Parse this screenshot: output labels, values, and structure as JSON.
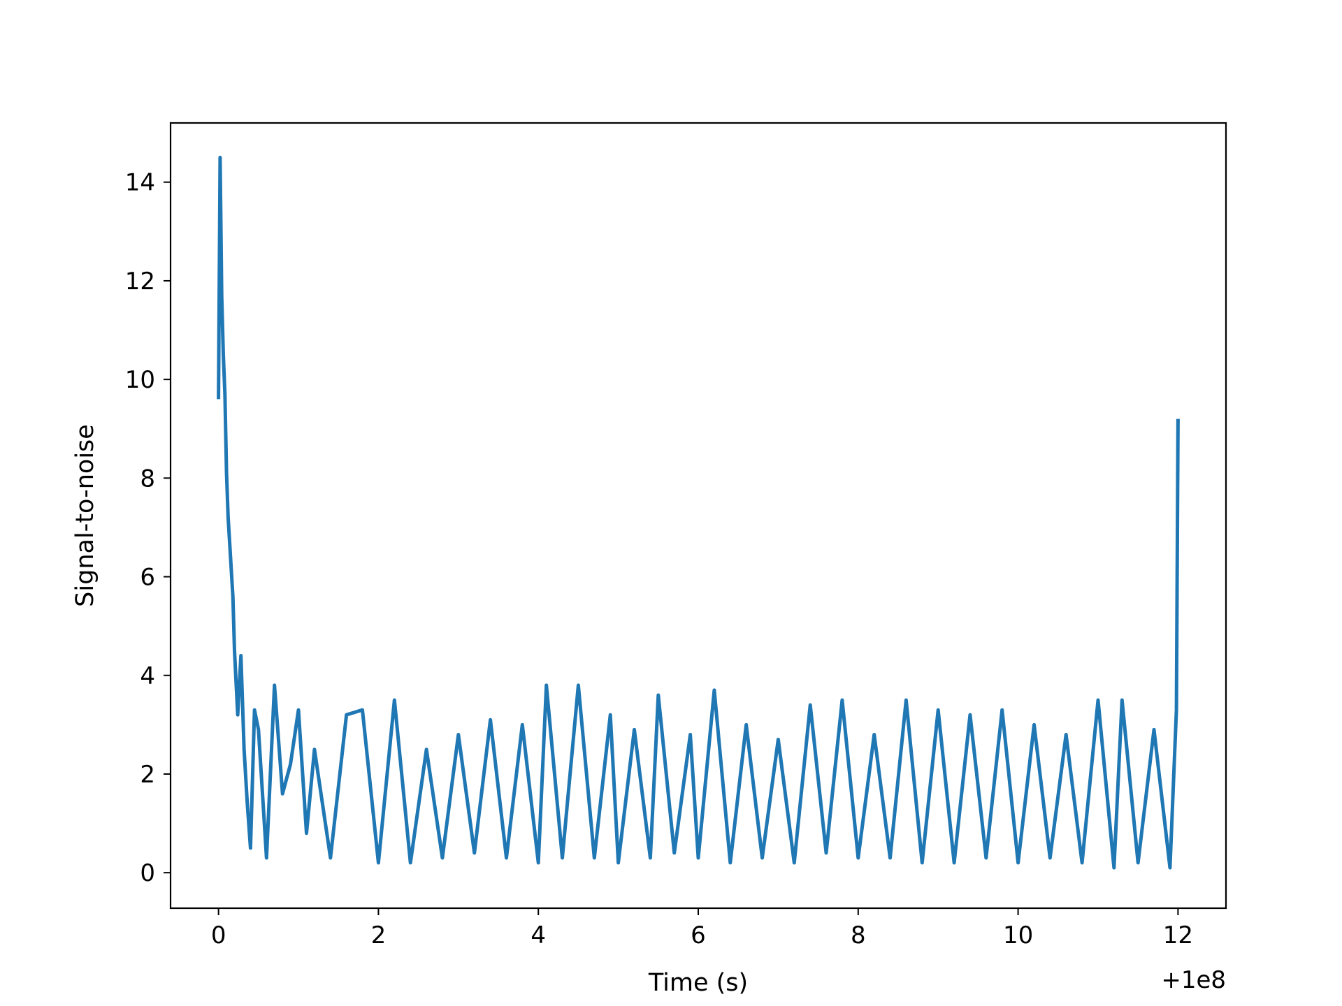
{
  "chart_data": {
    "type": "line",
    "title": "",
    "xlabel": "Time (s)",
    "ylabel": "Signal-to-noise",
    "x_offset_label": "+1e8",
    "xlim": [
      -0.6,
      12.6
    ],
    "ylim": [
      -0.72,
      15.2
    ],
    "x_ticks": [
      0,
      2,
      4,
      6,
      8,
      10,
      12
    ],
    "x_tick_labels": [
      "0",
      "2",
      "4",
      "6",
      "8",
      "10",
      "12"
    ],
    "y_ticks": [
      0,
      2,
      4,
      6,
      8,
      10,
      12,
      14
    ],
    "y_tick_labels": [
      "0",
      "2",
      "4",
      "6",
      "8",
      "10",
      "12",
      "14"
    ],
    "grid": false,
    "legend": "none",
    "series_color": "#1f77b4",
    "series": [
      {
        "x": [
          0.0,
          0.02,
          0.04,
          0.06,
          0.08,
          0.1,
          0.12,
          0.15,
          0.18,
          0.2,
          0.24,
          0.28,
          0.32,
          0.36,
          0.4,
          0.45,
          0.5,
          0.6,
          0.7,
          0.8,
          0.9,
          1.0,
          1.1,
          1.2,
          1.4,
          1.6,
          1.8,
          2.0,
          2.2,
          2.4,
          2.6,
          2.8,
          3.0,
          3.2,
          3.4,
          3.6,
          3.8,
          4.0,
          4.1,
          4.3,
          4.5,
          4.7,
          4.9,
          5.0,
          5.2,
          5.4,
          5.5,
          5.7,
          5.9,
          6.0,
          6.2,
          6.4,
          6.6,
          6.8,
          7.0,
          7.2,
          7.4,
          7.6,
          7.8,
          8.0,
          8.2,
          8.4,
          8.6,
          8.8,
          9.0,
          9.2,
          9.4,
          9.6,
          9.8,
          10.0,
          10.2,
          10.4,
          10.6,
          10.8,
          11.0,
          11.2,
          11.3,
          11.5,
          11.7,
          11.9,
          11.98,
          12.0
        ],
        "y": [
          9.6,
          14.5,
          11.7,
          10.5,
          9.7,
          8.1,
          7.2,
          6.4,
          5.6,
          4.5,
          3.2,
          4.4,
          2.5,
          1.4,
          0.5,
          3.3,
          2.9,
          0.3,
          3.8,
          1.6,
          2.2,
          3.3,
          0.8,
          2.5,
          0.3,
          3.2,
          3.3,
          0.2,
          3.5,
          0.2,
          2.5,
          0.3,
          2.8,
          0.4,
          3.1,
          0.3,
          3.0,
          0.2,
          3.8,
          0.3,
          3.8,
          0.3,
          3.2,
          0.2,
          2.9,
          0.3,
          3.6,
          0.4,
          2.8,
          0.3,
          3.7,
          0.2,
          3.0,
          0.3,
          2.7,
          0.2,
          3.4,
          0.4,
          3.5,
          0.3,
          2.8,
          0.3,
          3.5,
          0.2,
          3.3,
          0.2,
          3.2,
          0.3,
          3.3,
          0.2,
          3.0,
          0.3,
          2.8,
          0.2,
          3.5,
          0.1,
          3.5,
          0.2,
          2.9,
          0.1,
          3.3,
          9.2
        ]
      }
    ]
  }
}
